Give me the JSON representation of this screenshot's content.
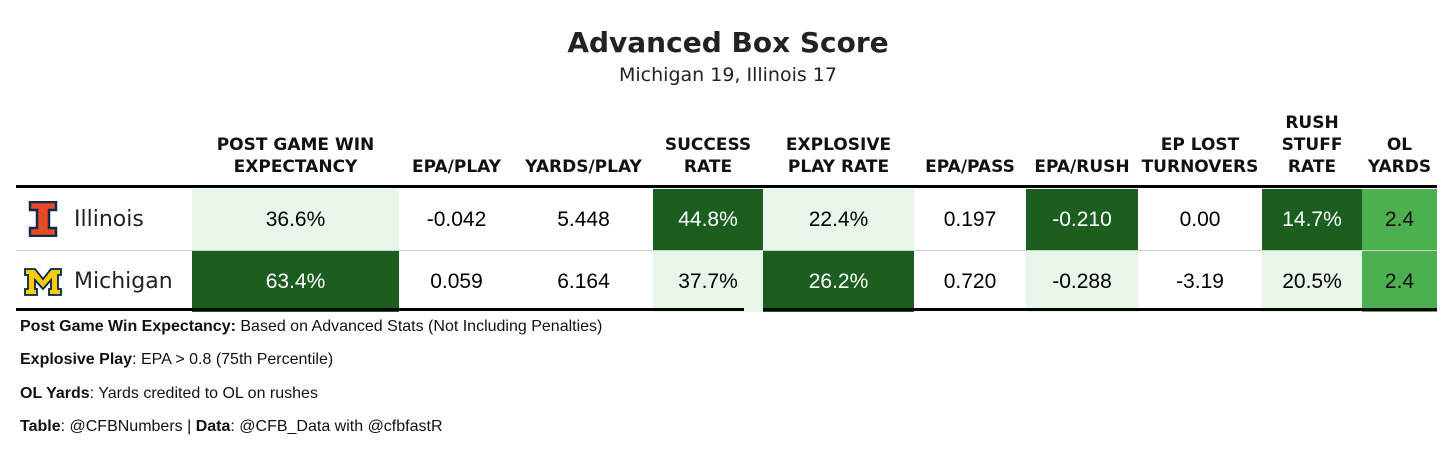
{
  "chart_data": {
    "type": "table",
    "title": "Advanced Box Score",
    "subtitle": "Michigan 19, Illinois 17",
    "columns": [
      {
        "key": "wp",
        "label": [
          "POST GAME WIN",
          "EXPECTANCY"
        ]
      },
      {
        "key": "epa_play",
        "label": [
          "EPA/PLAY"
        ]
      },
      {
        "key": "yards_play",
        "label": [
          "YARDS/PLAY"
        ]
      },
      {
        "key": "success",
        "label": [
          "SUCCESS",
          "RATE"
        ]
      },
      {
        "key": "explosive",
        "label": [
          "EXPLOSIVE",
          "PLAY RATE"
        ]
      },
      {
        "key": "epa_pass",
        "label": [
          "EPA/PASS"
        ]
      },
      {
        "key": "epa_rush",
        "label": [
          "EPA/RUSH"
        ]
      },
      {
        "key": "ep_lost",
        "label": [
          "EP LOST",
          "TURNOVERS"
        ]
      },
      {
        "key": "stuff",
        "label": [
          "RUSH",
          "STUFF",
          "RATE"
        ]
      },
      {
        "key": "ol",
        "label": [
          "OL",
          "YARDS"
        ]
      }
    ],
    "rows": [
      {
        "team": "Illinois",
        "logo": "illinois-block-i-logo",
        "values": [
          "36.6%",
          "-0.042",
          "5.448",
          "44.8%",
          "22.4%",
          "0.197",
          "-0.210",
          "0.00",
          "14.7%",
          "2.4"
        ],
        "shading": [
          "light",
          "none",
          "none",
          "dark",
          "light",
          "none",
          "dark",
          "none",
          "dark",
          "medium"
        ]
      },
      {
        "team": "Michigan",
        "logo": "michigan-block-m-logo",
        "values": [
          "63.4%",
          "0.059",
          "6.164",
          "37.7%",
          "26.2%",
          "0.720",
          "-0.288",
          "-3.19",
          "20.5%",
          "2.4"
        ],
        "shading": [
          "dark",
          "none",
          "none",
          "light",
          "dark",
          "none",
          "light",
          "none",
          "light",
          "medium"
        ]
      }
    ],
    "colors": {
      "dark": "#1b5e20",
      "light": "#e8f5e9",
      "medium": "#4caf50",
      "none": "#ffffff"
    }
  },
  "footnotes": [
    {
      "bold": "Post Game Win Expectancy:",
      "text": " Based on Advanced Stats (Not Including Penalties)"
    },
    {
      "bold": "Explosive Play",
      "text": ": EPA > 0.8 (75th Percentile)"
    },
    {
      "bold": "OL Yards",
      "text": ": Yards credited to OL on rushes"
    }
  ],
  "credits": {
    "table_label": "Table",
    "table_value": ": @CFBNumbers | ",
    "data_label": "Data",
    "data_value": ": @CFB_Data with @cfbfastR"
  }
}
